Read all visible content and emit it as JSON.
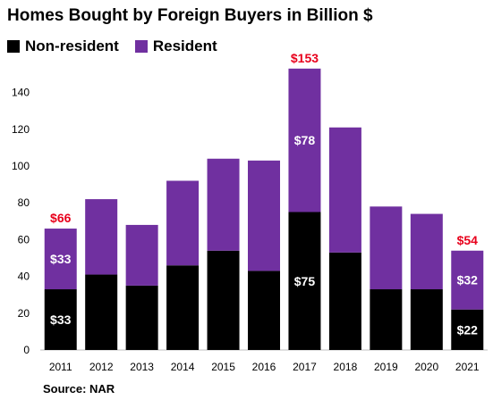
{
  "chart_data": {
    "type": "bar",
    "stacked": true,
    "title": "Homes Bought by Foreign Buyers in Billion $",
    "categories": [
      "2011",
      "2012",
      "2013",
      "2014",
      "2015",
      "2016",
      "2017",
      "2018",
      "2019",
      "2020",
      "2021"
    ],
    "series": [
      {
        "name": "Non-resident",
        "color": "#000000",
        "values": [
          33,
          41,
          35,
          46,
          54,
          43,
          75,
          53,
          33,
          33,
          22
        ]
      },
      {
        "name": "Resident",
        "color": "#7030a0",
        "values": [
          33,
          41,
          33,
          46,
          50,
          60,
          78,
          68,
          45,
          41,
          32
        ]
      }
    ],
    "bar_labels": [
      {
        "category": "2011",
        "series": "Non-resident",
        "text": "$33"
      },
      {
        "category": "2011",
        "series": "Resident",
        "text": "$33"
      },
      {
        "category": "2011",
        "series": "total",
        "text": "$66"
      },
      {
        "category": "2017",
        "series": "Non-resident",
        "text": "$75"
      },
      {
        "category": "2017",
        "series": "Resident",
        "text": "$78"
      },
      {
        "category": "2017",
        "series": "total",
        "text": "$153"
      },
      {
        "category": "2021",
        "series": "Non-resident",
        "text": "$22"
      },
      {
        "category": "2021",
        "series": "Resident",
        "text": "$32"
      },
      {
        "category": "2021",
        "series": "total",
        "text": "$54"
      }
    ],
    "total_label_color": "#e8001c",
    "ylim": [
      0,
      150
    ],
    "yticks": [
      0,
      20,
      40,
      60,
      80,
      100,
      120,
      140
    ],
    "grid": false,
    "legend_position": "top-left",
    "source": "Source: NAR"
  }
}
